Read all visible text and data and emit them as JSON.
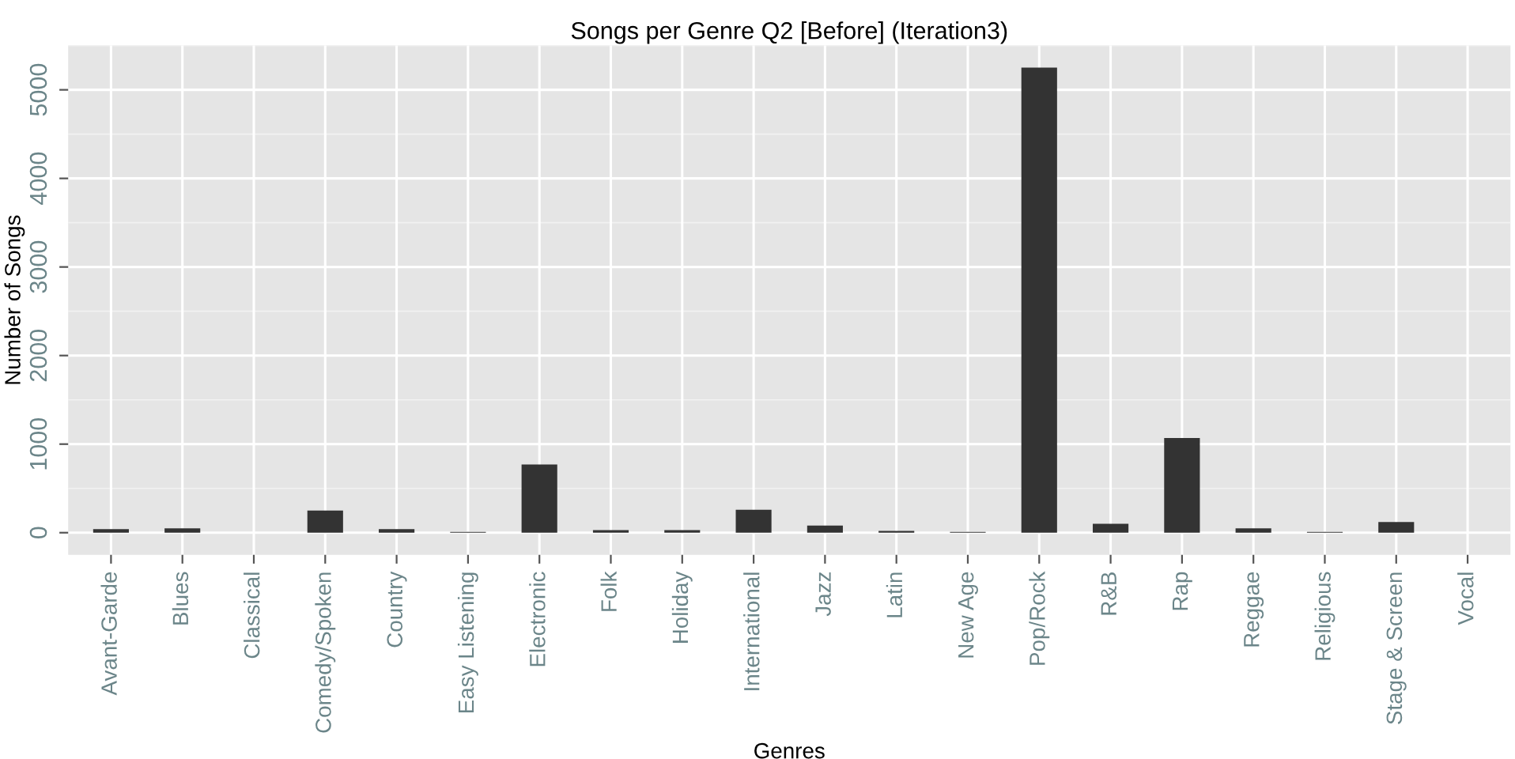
{
  "chart_data": {
    "type": "bar",
    "title": "Songs per Genre Q2 [Before] (Iteration3)",
    "xlabel": "Genres",
    "ylabel": "Number of Songs",
    "categories": [
      "Avant-Garde",
      "Blues",
      "Classical",
      "Comedy/Spoken",
      "Country",
      "Easy Listening",
      "Electronic",
      "Folk",
      "Holiday",
      "International",
      "Jazz",
      "Latin",
      "New Age",
      "Pop/Rock",
      "R&B",
      "Rap",
      "Reggae",
      "Religious",
      "Stage & Screen",
      "Vocal"
    ],
    "values": [
      40,
      50,
      0,
      250,
      40,
      10,
      770,
      30,
      30,
      260,
      80,
      20,
      10,
      5250,
      100,
      1070,
      50,
      10,
      120,
      0
    ],
    "color": "#333333",
    "ylim": [
      -250,
      5500
    ],
    "yticks": [
      0,
      1000,
      2000,
      3000,
      4000,
      5000
    ],
    "grid": true
  }
}
